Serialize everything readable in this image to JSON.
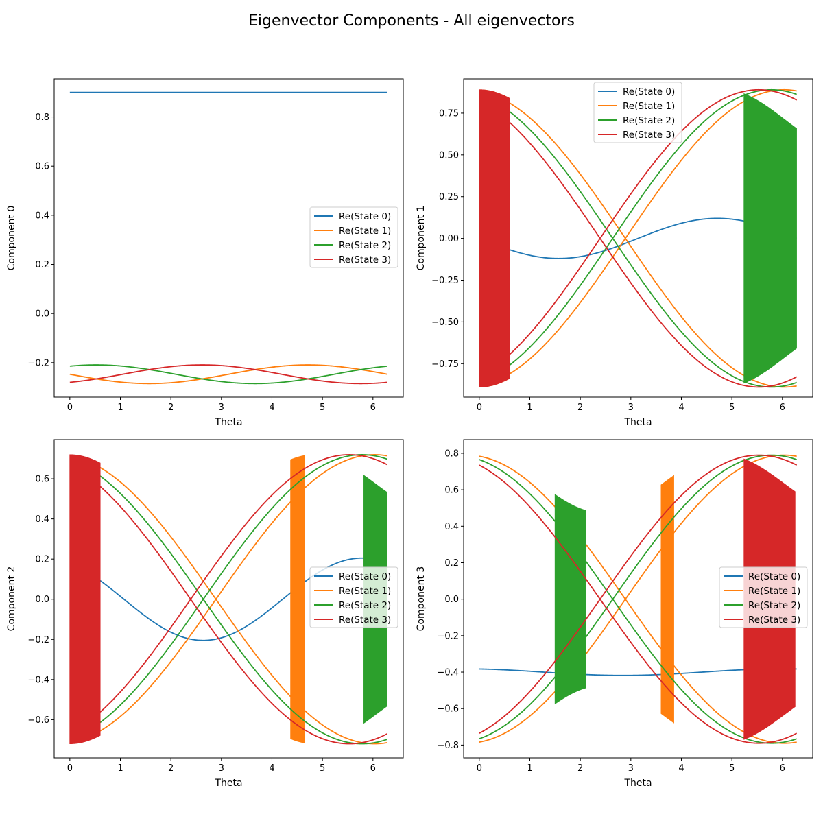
{
  "figure": {
    "title": "Eigenvector Components - All eigenvectors"
  },
  "colors": {
    "state0": "#1f77b4",
    "state1": "#ff7f0e",
    "state2": "#2ca02c",
    "state3": "#d62728"
  },
  "chart_data": [
    {
      "type": "line",
      "xlabel": "Theta",
      "ylabel": "Component 0",
      "xlim": [
        -0.31,
        6.6
      ],
      "ylim": [
        -0.34,
        0.955
      ],
      "xticks": [
        0,
        1,
        2,
        3,
        4,
        5,
        6
      ],
      "yticks": [
        -0.2,
        0.0,
        0.2,
        0.4,
        0.6,
        0.8
      ],
      "ytick_labels": [
        "−0.2",
        "0.0",
        "0.2",
        "0.4",
        "0.6",
        "0.8"
      ],
      "legend": "center-right",
      "series": [
        {
          "name": "Re(State 0)",
          "kind": "sin",
          "offset": 0.9,
          "amp": 0.0,
          "phase": 0,
          "color": "#1f77b4"
        },
        {
          "name": "Re(State 1)",
          "kind": "sin",
          "offset": -0.247,
          "amp": 0.038,
          "phase": 1.5708,
          "color": "#ff7f0e"
        },
        {
          "name": "Re(State 2)",
          "kind": "sin",
          "offset": -0.247,
          "amp": 0.038,
          "phase": -0.5236,
          "color": "#2ca02c"
        },
        {
          "name": "Re(State 3)",
          "kind": "sin",
          "offset": -0.247,
          "amp": 0.038,
          "phase": 3.6652,
          "color": "#d62728"
        }
      ]
    },
    {
      "type": "line",
      "xlabel": "Theta",
      "ylabel": "Component 1",
      "xlim": [
        -0.31,
        6.6
      ],
      "ylim": [
        -0.95,
        0.955
      ],
      "xticks": [
        0,
        1,
        2,
        3,
        4,
        5,
        6
      ],
      "yticks": [
        -0.75,
        -0.5,
        -0.25,
        0.0,
        0.25,
        0.5,
        0.75
      ],
      "ytick_labels": [
        "−0.75",
        "−0.50",
        "−0.25",
        "0.00",
        "0.25",
        "0.50",
        "0.75"
      ],
      "legend": "upper-center",
      "series": [
        {
          "name": "Re(State 0)",
          "kind": "sin",
          "offset": 0.0,
          "amp": 0.12,
          "phase": 1.5708,
          "color": "#1f77b4"
        },
        {
          "name": "Re(State 1)",
          "kind": "absband",
          "amp": 0.89,
          "band_start": 0.0,
          "band_end": 0.6,
          "color": "#ff7f0e"
        },
        {
          "name": "Re(State 2)",
          "kind": "absband",
          "amp": 0.89,
          "band_start": 5.24,
          "band_end": 6.28,
          "color": "#2ca02c"
        },
        {
          "name": "Re(State 3)",
          "kind": "absband",
          "amp": 0.89,
          "band_start": 0.0,
          "band_end": 0.6,
          "color": "#d62728"
        }
      ]
    },
    {
      "type": "line",
      "xlabel": "Theta",
      "ylabel": "Component 2",
      "xlim": [
        -0.31,
        6.6
      ],
      "ylim": [
        -0.79,
        0.795
      ],
      "xticks": [
        0,
        1,
        2,
        3,
        4,
        5,
        6
      ],
      "yticks": [
        -0.6,
        -0.4,
        -0.2,
        0.0,
        0.2,
        0.4,
        0.6
      ],
      "ytick_labels": [
        "−0.6",
        "−0.4",
        "−0.2",
        "0.0",
        "0.2",
        "0.4",
        "0.6"
      ],
      "legend": "center-right",
      "series": [
        {
          "name": "Re(State 0)",
          "kind": "sin",
          "offset": 0.0,
          "amp": 0.205,
          "phase": 0.5,
          "color": "#1f77b4"
        },
        {
          "name": "Re(State 1)",
          "kind": "absband",
          "amp": 0.72,
          "band_start": 4.37,
          "band_end": 4.65,
          "color": "#ff7f0e"
        },
        {
          "name": "Re(State 2)",
          "kind": "absband",
          "amp": 0.72,
          "band_start": 5.82,
          "band_end": 6.28,
          "color": "#2ca02c"
        },
        {
          "name": "Re(State 3)",
          "kind": "absband",
          "amp": 0.72,
          "band_start": 0.0,
          "band_end": 0.6,
          "color": "#d62728"
        }
      ]
    },
    {
      "type": "line",
      "xlabel": "Theta",
      "ylabel": "Component 3",
      "xlim": [
        -0.31,
        6.6
      ],
      "ylim": [
        -0.87,
        0.875
      ],
      "xticks": [
        0,
        1,
        2,
        3,
        4,
        5,
        6
      ],
      "yticks": [
        -0.8,
        -0.6,
        -0.4,
        -0.2,
        0.0,
        0.2,
        0.4,
        0.6,
        0.8
      ],
      "ytick_labels": [
        "−0.8",
        "−0.6",
        "−0.4",
        "−0.2",
        "0.0",
        "0.2",
        "0.4",
        "0.6",
        "0.8"
      ],
      "legend": "center-right",
      "series": [
        {
          "name": "Re(State 0)",
          "kind": "sin",
          "offset": -0.4,
          "amp": 0.018,
          "phase": 0.3,
          "color": "#1f77b4"
        },
        {
          "name": "Re(State 1)",
          "kind": "absband",
          "amp": 0.79,
          "band_start": 3.6,
          "band_end": 3.85,
          "color": "#ff7f0e"
        },
        {
          "name": "Re(State 2)",
          "kind": "absband",
          "amp": 0.79,
          "band_start": 1.5,
          "band_end": 2.1,
          "color": "#2ca02c"
        },
        {
          "name": "Re(State 3)",
          "kind": "absband",
          "amp": 0.79,
          "band_start": 5.24,
          "band_end": 6.25,
          "color": "#d62728"
        }
      ]
    }
  ]
}
